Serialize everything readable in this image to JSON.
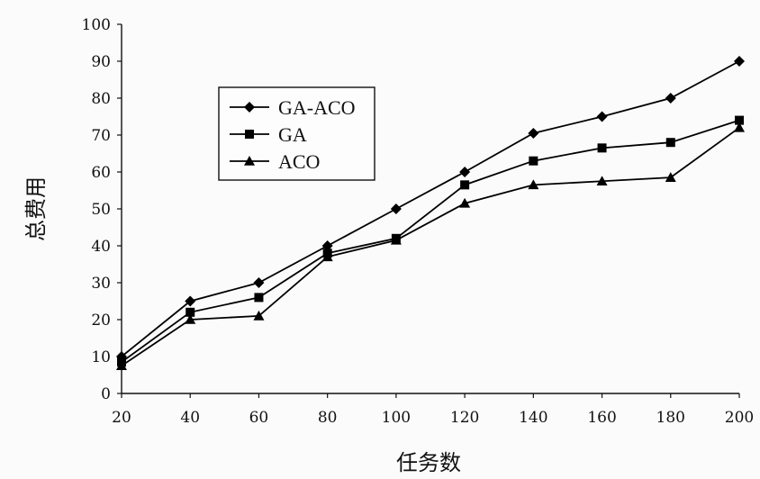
{
  "chart_data": {
    "type": "line",
    "title": "",
    "xlabel": "任务数",
    "ylabel": "总费用",
    "x": [
      20,
      40,
      60,
      80,
      100,
      120,
      140,
      160,
      180,
      200
    ],
    "xlim": [
      20,
      200
    ],
    "ylim": [
      0,
      100
    ],
    "x_ticks": [
      20,
      40,
      60,
      80,
      100,
      120,
      140,
      160,
      180,
      200
    ],
    "y_ticks": [
      0,
      10,
      20,
      30,
      40,
      50,
      60,
      70,
      80,
      90,
      100
    ],
    "grid": false,
    "legend_position": "upper-left",
    "series": [
      {
        "name": "GA-ACO",
        "marker": "diamond",
        "color": "#000000",
        "values": [
          10,
          25,
          30,
          40,
          50,
          60,
          70.5,
          75,
          80,
          90
        ]
      },
      {
        "name": "GA",
        "marker": "square",
        "color": "#000000",
        "values": [
          8.5,
          22,
          26,
          38,
          42,
          56.5,
          63,
          66.5,
          68,
          74
        ]
      },
      {
        "name": "ACO",
        "marker": "triangle",
        "color": "#000000",
        "values": [
          7.5,
          20,
          21,
          37,
          41.5,
          51.5,
          56.5,
          57.5,
          58.5,
          72
        ]
      }
    ]
  }
}
